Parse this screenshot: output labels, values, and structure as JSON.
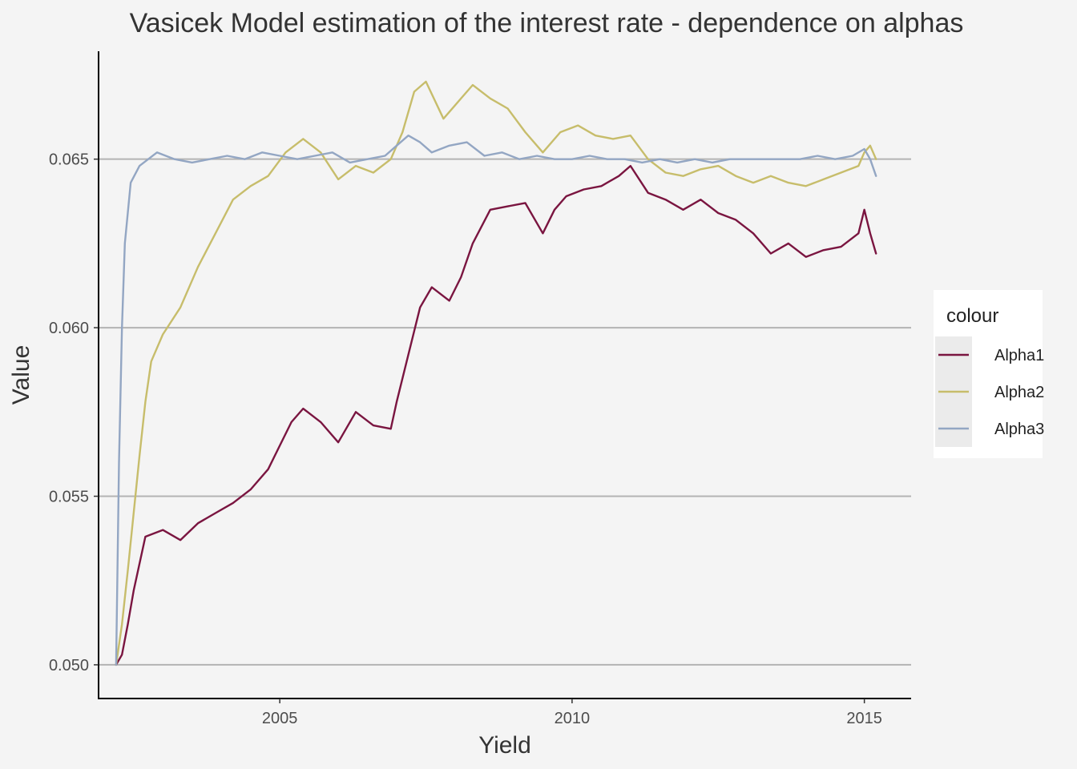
{
  "chart_data": {
    "type": "line",
    "title": "Vasicek Model estimation of the interest rate - dependence on alphas",
    "xlabel": "Yield",
    "ylabel": "Value",
    "xlim": [
      2001.9,
      2015.8
    ],
    "ylim": [
      0.049,
      0.0682
    ],
    "x_ticks": [
      2005,
      2010,
      2015
    ],
    "x_tick_labels": [
      "2005",
      "2010",
      "2015"
    ],
    "y_ticks": [
      0.05,
      0.055,
      0.06,
      0.065
    ],
    "y_tick_labels": [
      "0.050",
      "0.055",
      "0.060",
      "0.065"
    ],
    "grid": "horizontal major",
    "legend": {
      "title": "colour",
      "position": "right"
    },
    "series": [
      {
        "name": "Alpha1",
        "color": "#7a1540",
        "x": [
          2002.2,
          2002.3,
          2002.4,
          2002.5,
          2002.7,
          2003.0,
          2003.3,
          2003.6,
          2003.9,
          2004.2,
          2004.5,
          2004.8,
          2005.0,
          2005.2,
          2005.4,
          2005.7,
          2006.0,
          2006.3,
          2006.6,
          2006.9,
          2007.0,
          2007.2,
          2007.4,
          2007.6,
          2007.9,
          2008.1,
          2008.3,
          2008.6,
          2008.9,
          2009.2,
          2009.5,
          2009.7,
          2009.9,
          2010.2,
          2010.5,
          2010.8,
          2011.0,
          2011.3,
          2011.6,
          2011.9,
          2012.2,
          2012.5,
          2012.8,
          2013.1,
          2013.4,
          2013.7,
          2014.0,
          2014.3,
          2014.6,
          2014.9,
          2015.0,
          2015.1,
          2015.2
        ],
        "values": [
          0.05,
          0.0503,
          0.0512,
          0.0522,
          0.0538,
          0.054,
          0.0537,
          0.0542,
          0.0545,
          0.0548,
          0.0552,
          0.0558,
          0.0565,
          0.0572,
          0.0576,
          0.0572,
          0.0566,
          0.0575,
          0.0571,
          0.057,
          0.0578,
          0.0592,
          0.0606,
          0.0612,
          0.0608,
          0.0615,
          0.0625,
          0.0635,
          0.0636,
          0.0637,
          0.0628,
          0.0635,
          0.0639,
          0.0641,
          0.0642,
          0.0645,
          0.0648,
          0.064,
          0.0638,
          0.0635,
          0.0638,
          0.0634,
          0.0632,
          0.0628,
          0.0622,
          0.0625,
          0.0621,
          0.0623,
          0.0624,
          0.0628,
          0.0635,
          0.0628,
          0.0622
        ]
      },
      {
        "name": "Alpha2",
        "color": "#c7bd6b",
        "x": [
          2002.2,
          2002.3,
          2002.4,
          2002.5,
          2002.6,
          2002.7,
          2002.8,
          2003.0,
          2003.3,
          2003.6,
          2003.9,
          2004.2,
          2004.5,
          2004.8,
          2005.1,
          2005.4,
          2005.7,
          2006.0,
          2006.3,
          2006.6,
          2006.9,
          2007.1,
          2007.3,
          2007.5,
          2007.8,
          2008.1,
          2008.3,
          2008.6,
          2008.9,
          2009.2,
          2009.5,
          2009.8,
          2010.1,
          2010.4,
          2010.7,
          2011.0,
          2011.3,
          2011.6,
          2011.9,
          2012.2,
          2012.5,
          2012.8,
          2013.1,
          2013.4,
          2013.7,
          2014.0,
          2014.3,
          2014.6,
          2014.9,
          2015.0,
          2015.1,
          2015.2
        ],
        "values": [
          0.05,
          0.0512,
          0.0528,
          0.0545,
          0.0562,
          0.0578,
          0.059,
          0.0598,
          0.0606,
          0.0618,
          0.0628,
          0.0638,
          0.0642,
          0.0645,
          0.0652,
          0.0656,
          0.0652,
          0.0644,
          0.0648,
          0.0646,
          0.065,
          0.0658,
          0.067,
          0.0673,
          0.0662,
          0.0668,
          0.0672,
          0.0668,
          0.0665,
          0.0658,
          0.0652,
          0.0658,
          0.066,
          0.0657,
          0.0656,
          0.0657,
          0.065,
          0.0646,
          0.0645,
          0.0647,
          0.0648,
          0.0645,
          0.0643,
          0.0645,
          0.0643,
          0.0642,
          0.0644,
          0.0646,
          0.0648,
          0.0652,
          0.0654,
          0.065
        ]
      },
      {
        "name": "Alpha3",
        "color": "#93a6c3",
        "x": [
          2002.2,
          2002.25,
          2002.3,
          2002.35,
          2002.45,
          2002.6,
          2002.9,
          2003.2,
          2003.5,
          2003.8,
          2004.1,
          2004.4,
          2004.7,
          2005.0,
          2005.3,
          2005.6,
          2005.9,
          2006.2,
          2006.5,
          2006.8,
          2007.0,
          2007.2,
          2007.4,
          2007.6,
          2007.9,
          2008.2,
          2008.5,
          2008.8,
          2009.1,
          2009.4,
          2009.7,
          2010.0,
          2010.3,
          2010.6,
          2010.9,
          2011.2,
          2011.5,
          2011.8,
          2012.1,
          2012.4,
          2012.7,
          2013.0,
          2013.3,
          2013.6,
          2013.9,
          2014.2,
          2014.5,
          2014.8,
          2015.0,
          2015.1,
          2015.2
        ],
        "values": [
          0.05,
          0.056,
          0.06,
          0.0625,
          0.0643,
          0.0648,
          0.0652,
          0.065,
          0.0649,
          0.065,
          0.0651,
          0.065,
          0.0652,
          0.0651,
          0.065,
          0.0651,
          0.0652,
          0.0649,
          0.065,
          0.0651,
          0.0654,
          0.0657,
          0.0655,
          0.0652,
          0.0654,
          0.0655,
          0.0651,
          0.0652,
          0.065,
          0.0651,
          0.065,
          0.065,
          0.0651,
          0.065,
          0.065,
          0.0649,
          0.065,
          0.0649,
          0.065,
          0.0649,
          0.065,
          0.065,
          0.065,
          0.065,
          0.065,
          0.0651,
          0.065,
          0.0651,
          0.0653,
          0.065,
          0.0645
        ]
      }
    ]
  }
}
